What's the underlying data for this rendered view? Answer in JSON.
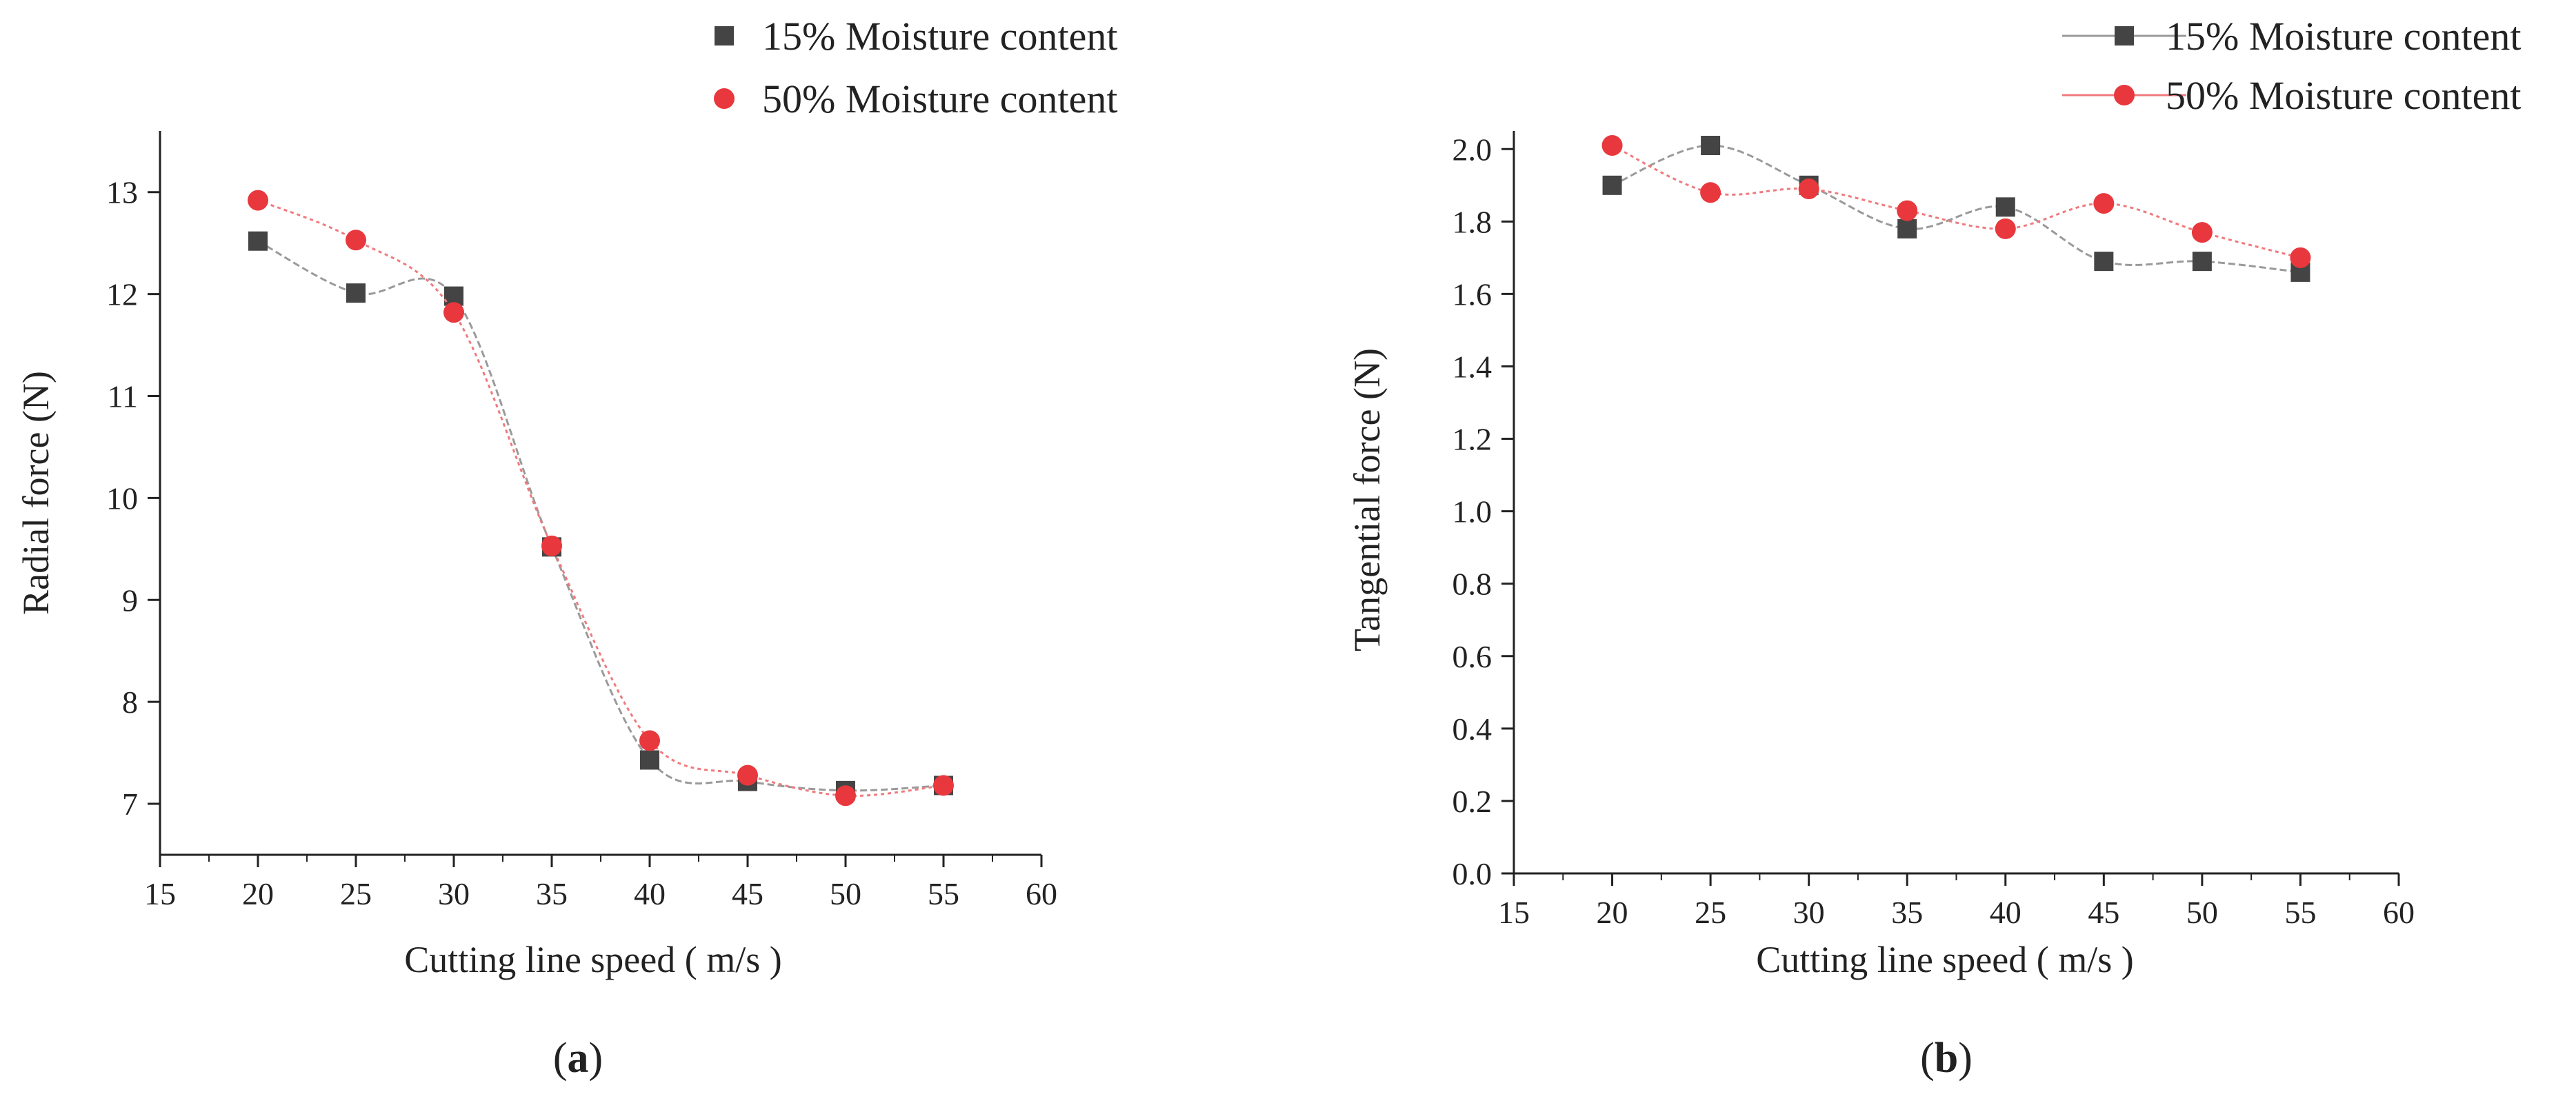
{
  "chart_data": [
    {
      "type": "line",
      "panel_label": "a",
      "xlabel": "Cutting line speed ( m/s )",
      "ylabel": "Radial force (N)",
      "xlim": [
        15,
        60
      ],
      "ylim": [
        6.5,
        13.6
      ],
      "xticks": [
        "15",
        "20",
        "25",
        "30",
        "35",
        "40",
        "45",
        "50",
        "55",
        "60"
      ],
      "yticks": [
        "7",
        "8",
        "9",
        "10",
        "11",
        "12",
        "13"
      ],
      "x": [
        20,
        25,
        30,
        35,
        40,
        45,
        50,
        55
      ],
      "series": [
        {
          "name": "15% Moisture content",
          "marker": "square",
          "color": "#444444",
          "line_color": "#9a9a9a",
          "values": [
            12.52,
            12.01,
            11.98,
            9.52,
            7.43,
            7.22,
            7.13,
            7.18
          ]
        },
        {
          "name": "50% Moisture content",
          "marker": "circle",
          "color": "#e8383d",
          "line_color": "#f07a7d",
          "values": [
            12.92,
            12.53,
            11.82,
            9.53,
            7.62,
            7.28,
            7.08,
            7.18
          ]
        }
      ],
      "legend": "top"
    },
    {
      "type": "line",
      "panel_label": "b",
      "xlabel": "Cutting line speed ( m/s )",
      "ylabel": "Tangential force (N)",
      "xlim": [
        15,
        60
      ],
      "ylim": [
        0,
        2.05
      ],
      "xticks": [
        "15",
        "20",
        "25",
        "30",
        "35",
        "40",
        "45",
        "50",
        "55",
        "60"
      ],
      "yticks": [
        "0.0",
        "0.2",
        "0.4",
        "0.6",
        "0.8",
        "1.0",
        "1.2",
        "1.4",
        "1.6",
        "1.8",
        "2.0"
      ],
      "x": [
        20,
        25,
        30,
        35,
        40,
        45,
        50,
        55
      ],
      "series": [
        {
          "name": "15% Moisture content",
          "marker": "square",
          "color": "#444444",
          "line_color": "#9a9a9a",
          "values": [
            1.9,
            2.01,
            1.9,
            1.78,
            1.84,
            1.69,
            1.69,
            1.66
          ]
        },
        {
          "name": "50% Moisture content",
          "marker": "circle",
          "color": "#e8383d",
          "line_color": "#f07a7d",
          "values": [
            2.01,
            1.88,
            1.89,
            1.83,
            1.78,
            1.85,
            1.77,
            1.7
          ]
        }
      ],
      "legend": "top-right"
    }
  ]
}
